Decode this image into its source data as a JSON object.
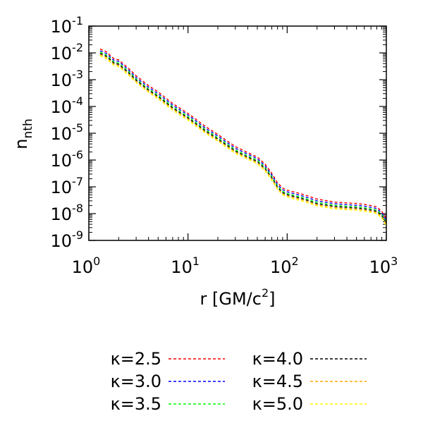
{
  "chart_data": {
    "type": "line",
    "title": "",
    "xlabel": "r [GM/c^2]",
    "ylabel": "n_nth",
    "xscale": "log",
    "yscale": "log",
    "xlim": [
      1,
      1000
    ],
    "ylim": [
      1e-09,
      0.1
    ],
    "grid": false,
    "legend_position": "bottom",
    "x_ticks": [
      {
        "base": "10",
        "exp": "0"
      },
      {
        "base": "10",
        "exp": "1"
      },
      {
        "base": "10",
        "exp": "2"
      },
      {
        "base": "10",
        "exp": "3"
      }
    ],
    "y_ticks": [
      {
        "base": "10",
        "exp": "-1"
      },
      {
        "base": "10",
        "exp": "-2"
      },
      {
        "base": "10",
        "exp": "-3"
      },
      {
        "base": "10",
        "exp": "-4"
      },
      {
        "base": "10",
        "exp": "-5"
      },
      {
        "base": "10",
        "exp": "-6"
      },
      {
        "base": "10",
        "exp": "-7"
      },
      {
        "base": "10",
        "exp": "-8"
      },
      {
        "base": "10",
        "exp": "-9"
      }
    ],
    "x": [
      1.3,
      1.5,
      1.8,
      2.0,
      2.5,
      3.0,
      4.0,
      5.0,
      7.0,
      10,
      15,
      20,
      30,
      40,
      50,
      60,
      70,
      80,
      90,
      100,
      150,
      200,
      300,
      400,
      500,
      600,
      700,
      800,
      900,
      1000
    ],
    "series": [
      {
        "name": "κ=2.5",
        "color": "#ff0000",
        "values": [
          0.014,
          0.011,
          0.006,
          0.0055,
          0.0027,
          0.0014,
          0.0006,
          0.00035,
          0.00013,
          5.5e-05,
          1.8e-05,
          9e-06,
          3.2e-06,
          1.9e-06,
          1.3e-06,
          7e-07,
          3.2e-07,
          1.4e-07,
          9e-08,
          7.5e-08,
          5e-08,
          3.5e-08,
          2.7e-08,
          2.5e-08,
          2.4e-08,
          2.2e-08,
          2e-08,
          1.8e-08,
          1.2e-08,
          6.5e-09
        ]
      },
      {
        "name": "κ=3.0",
        "color": "#0000ff",
        "values": [
          0.012,
          0.0095,
          0.0052,
          0.0048,
          0.00235,
          0.0012,
          0.00052,
          0.0003,
          0.000112,
          4.8e-05,
          1.55e-05,
          7.8e-06,
          2.75e-06,
          1.65e-06,
          1.12e-06,
          6e-07,
          2.75e-07,
          1.2e-07,
          7.8e-08,
          6.5e-08,
          4.3e-08,
          3e-08,
          2.35e-08,
          2.15e-08,
          2.05e-08,
          1.9e-08,
          1.72e-08,
          1.55e-08,
          1.05e-08,
          5.6e-09
        ]
      },
      {
        "name": "κ=3.5",
        "color": "#00ff00",
        "values": [
          0.0105,
          0.0083,
          0.0045,
          0.00415,
          0.00205,
          0.00105,
          0.00045,
          0.00026,
          9.8e-05,
          4.15e-05,
          1.35e-05,
          6.8e-06,
          2.4e-06,
          1.43e-06,
          9.8e-07,
          5.2e-07,
          2.4e-07,
          1.05e-07,
          6.8e-08,
          5.6e-08,
          3.75e-08,
          2.6e-08,
          2.05e-08,
          1.88e-08,
          1.8e-08,
          1.65e-08,
          1.5e-08,
          1.35e-08,
          9e-09,
          4.9e-09
        ]
      },
      {
        "name": "κ=4.0",
        "color": "#000000",
        "values": [
          0.0095,
          0.0075,
          0.0041,
          0.00375,
          0.00185,
          0.00095,
          0.00041,
          0.000235,
          8.8e-05,
          3.75e-05,
          1.22e-05,
          6.1e-06,
          2.17e-06,
          1.29e-06,
          8.8e-07,
          4.7e-07,
          2.17e-07,
          9.5e-08,
          6.1e-08,
          5.1e-08,
          3.4e-08,
          2.35e-08,
          1.85e-08,
          1.7e-08,
          1.62e-08,
          1.5e-08,
          1.36e-08,
          1.22e-08,
          8.2e-09,
          4.4e-09
        ]
      },
      {
        "name": "κ=4.5",
        "color": "#ffa500",
        "values": [
          0.0086,
          0.0068,
          0.0037,
          0.0034,
          0.00167,
          0.00086,
          0.00037,
          0.000212,
          8e-05,
          3.4e-05,
          1.1e-05,
          5.5e-06,
          1.96e-06,
          1.17e-06,
          8e-07,
          4.25e-07,
          1.96e-07,
          8.6e-08,
          5.5e-08,
          4.6e-08,
          3.07e-08,
          2.12e-08,
          1.67e-08,
          1.54e-08,
          1.47e-08,
          1.35e-08,
          1.23e-08,
          1.1e-08,
          7.4e-09,
          4e-09
        ]
      },
      {
        "name": "κ=5.0",
        "color": "#ffff00",
        "values": [
          0.0078,
          0.0061,
          0.00335,
          0.00305,
          0.0015,
          0.00078,
          0.000335,
          0.000192,
          7.2e-05,
          3.05e-05,
          1e-05,
          5e-06,
          1.77e-06,
          1.06e-06,
          7.2e-07,
          3.85e-07,
          1.77e-07,
          7.8e-08,
          5e-08,
          4.15e-08,
          2.77e-08,
          1.92e-08,
          1.5e-08,
          1.39e-08,
          1.33e-08,
          1.22e-08,
          1.11e-08,
          1e-08,
          6.7e-09,
          3.6e-09
        ]
      }
    ]
  }
}
